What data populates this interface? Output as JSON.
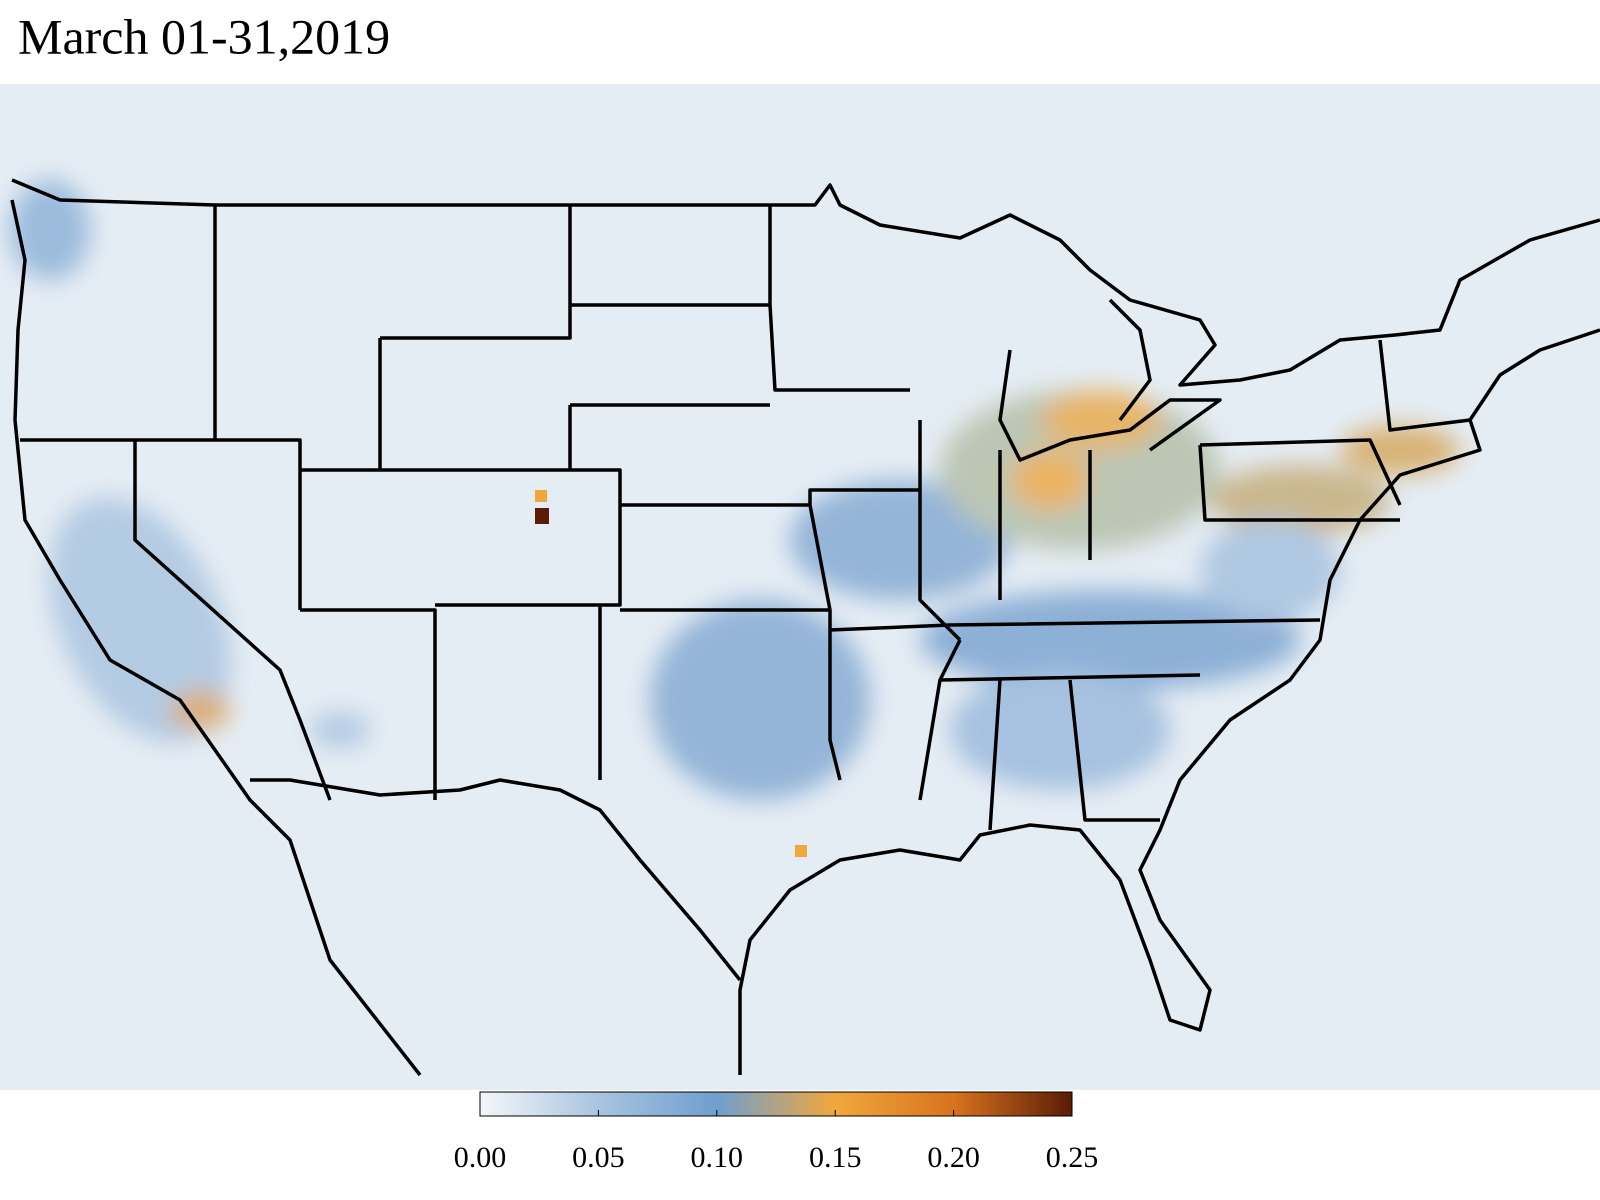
{
  "title": "March 01-31,2019",
  "chart_data": {
    "type": "colorbar",
    "colors": [
      "#f4f7fa",
      "#a9c4e0",
      "#6f9fcf",
      "#f0a83c",
      "#d8731f",
      "#5a1c05"
    ],
    "xlim": [
      0,
      0.25
    ],
    "xticks": [
      {
        "value": 0,
        "label": "0.00"
      },
      {
        "value": 0.05,
        "label": "0.05"
      },
      {
        "value": 0.1,
        "label": "0.10"
      },
      {
        "value": 0.15,
        "label": "0.15"
      },
      {
        "value": 0.2,
        "label": "0.20"
      },
      {
        "value": 0.25,
        "label": "0.25"
      }
    ]
  }
}
